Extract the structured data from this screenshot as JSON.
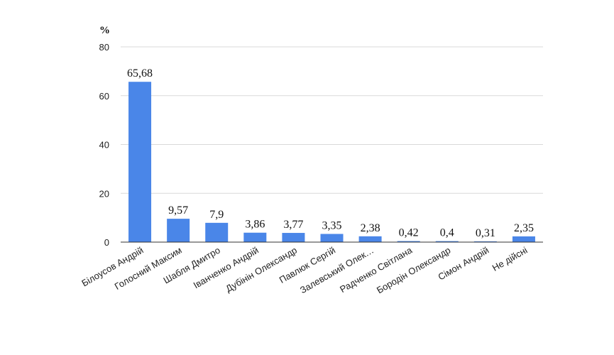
{
  "chart_data": {
    "type": "bar",
    "ylabel": "%",
    "ylim": [
      0,
      80
    ],
    "yticks": [
      0,
      20,
      40,
      60,
      80
    ],
    "grid": true,
    "legend": "none",
    "bar_color": "#4a86e8",
    "categories": [
      "Білоусов Андрій",
      "Голосний Максим",
      "Шабля Дмитро",
      "Іванченко Андрій",
      "Дубінін Олександр",
      "Павлюк Сергій",
      "Залевський Олек…",
      "Радченко Світлана",
      "Бородін Олександр",
      "Сімон Андрій",
      "Не дійсні"
    ],
    "values": [
      65.68,
      9.57,
      7.9,
      3.86,
      3.77,
      3.35,
      2.38,
      0.42,
      0.4,
      0.31,
      2.35
    ],
    "data_labels": [
      "65,68",
      "9,57",
      "7,9",
      "3,86",
      "3,77",
      "3,35",
      "2,38",
      "0,42",
      "0,4",
      "0,31",
      "2,35"
    ]
  }
}
